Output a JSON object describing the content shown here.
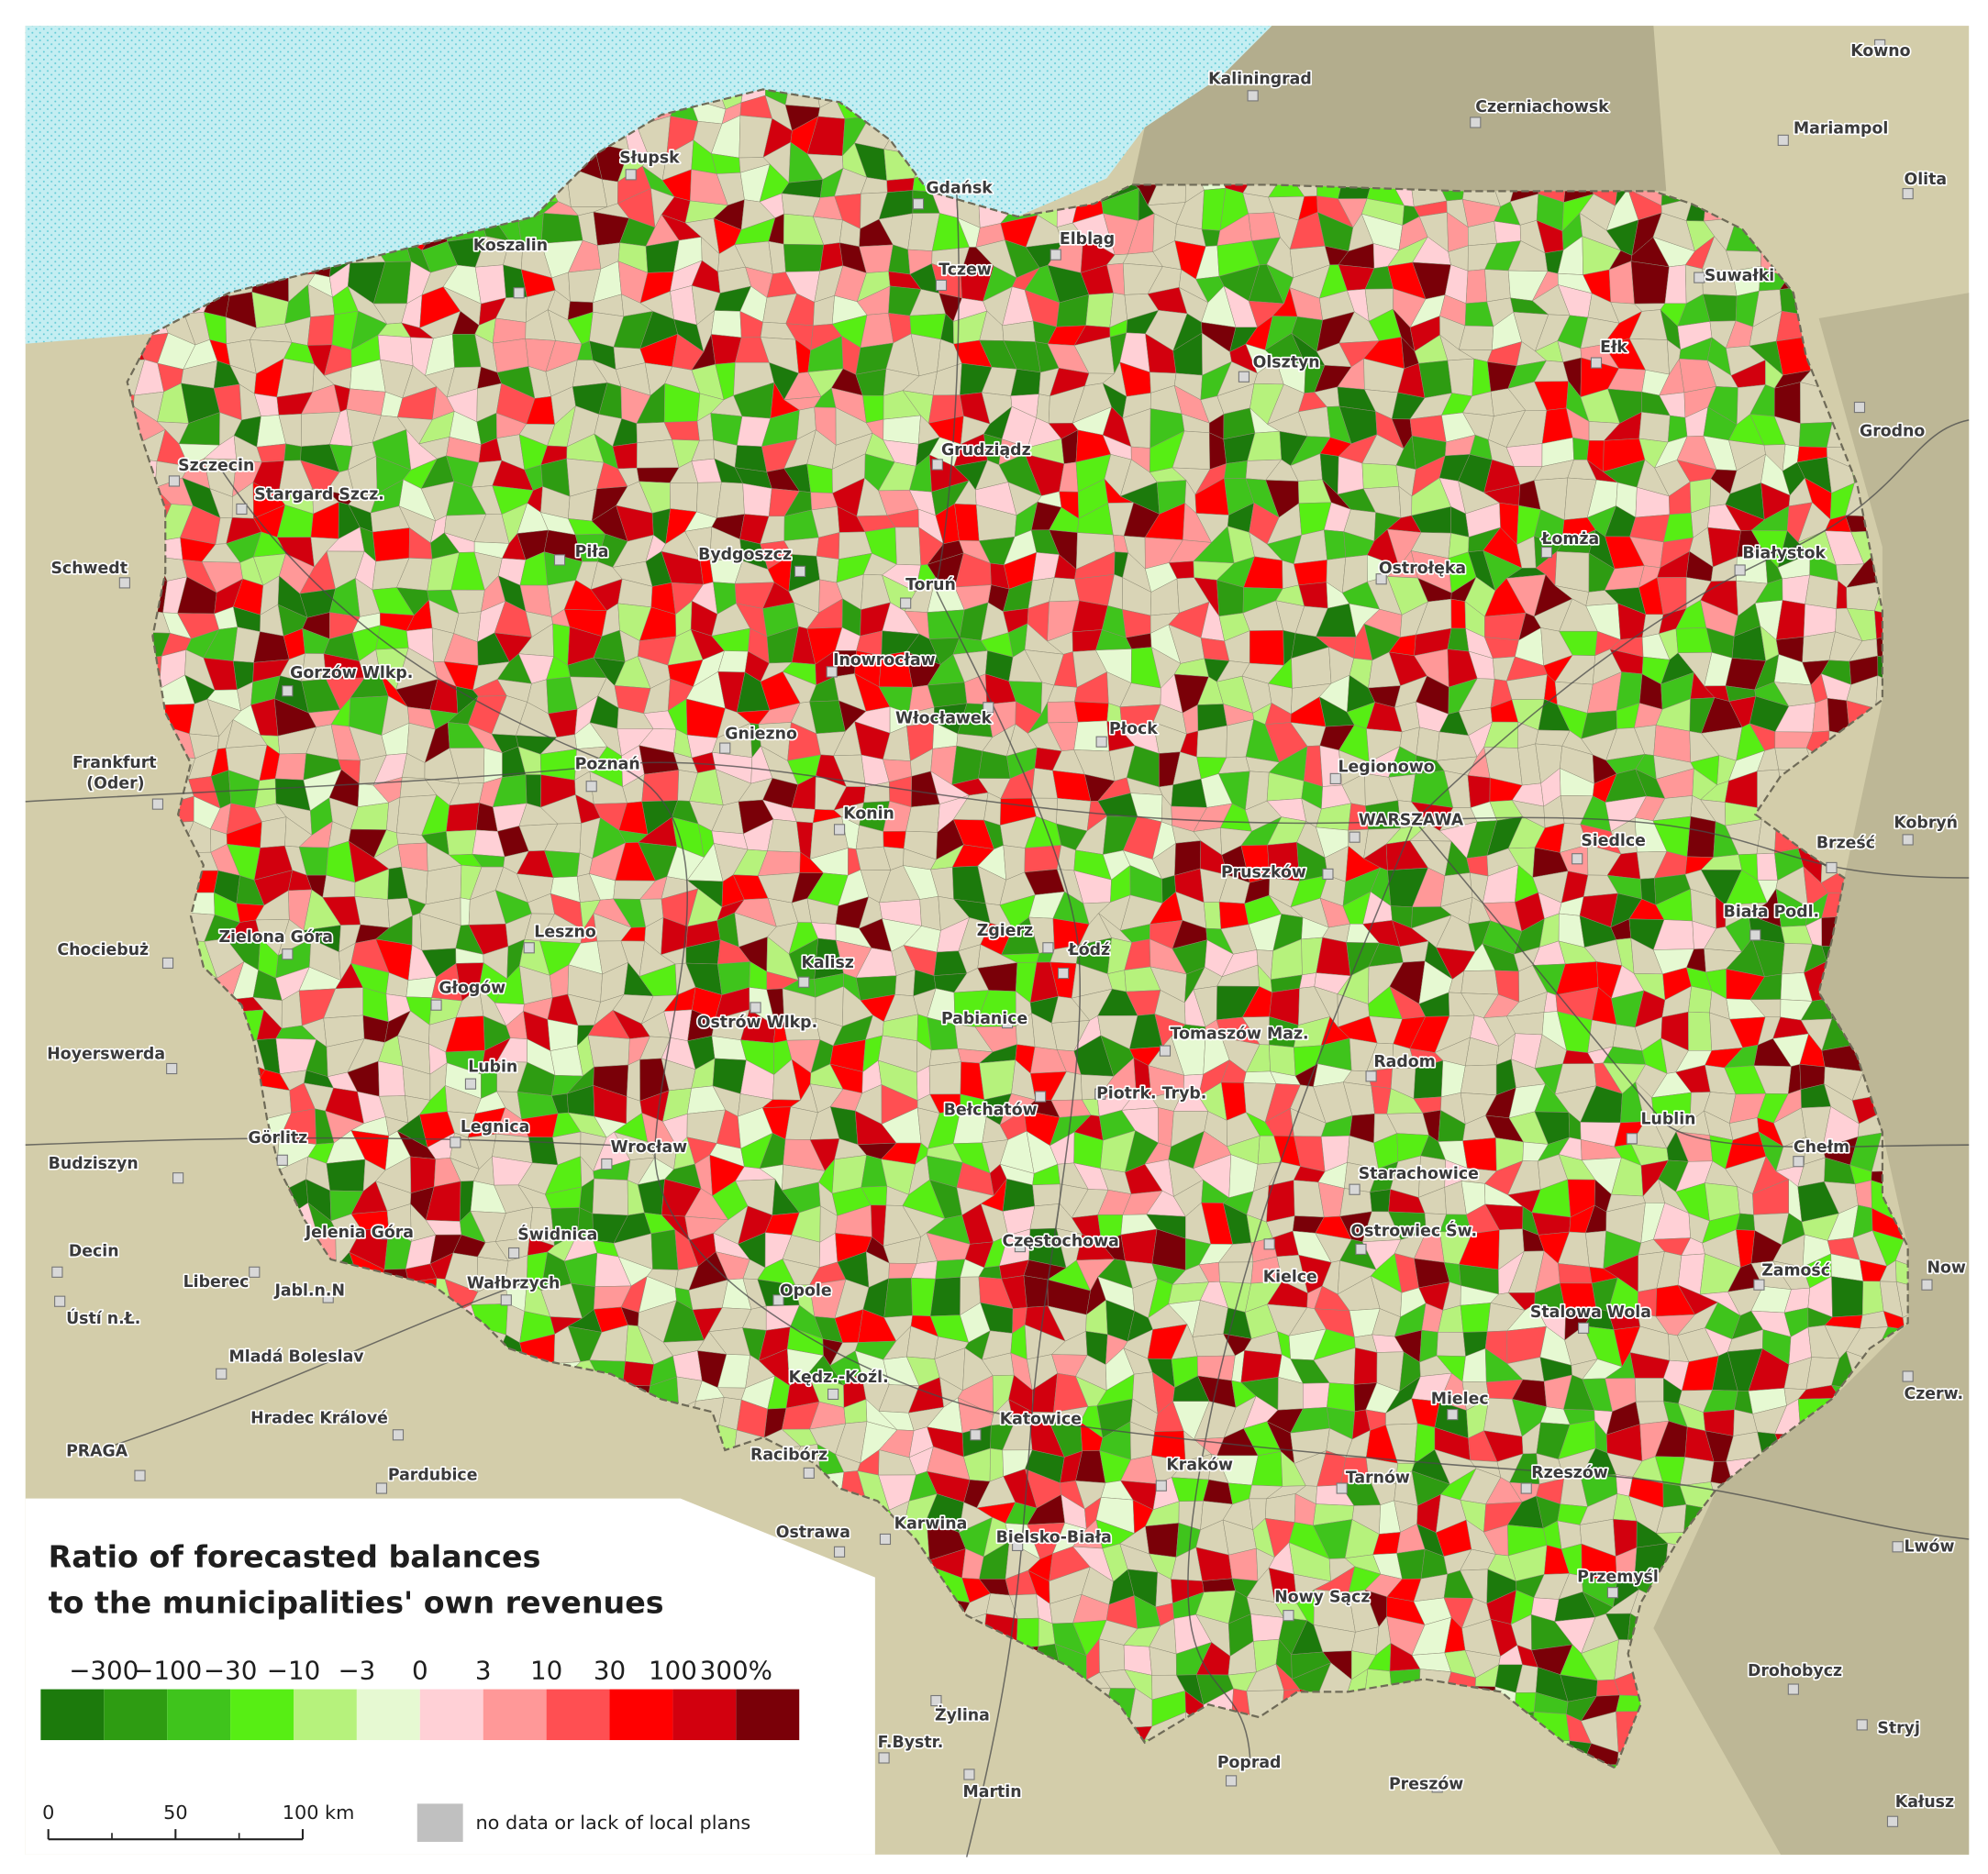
{
  "legend": {
    "title": [
      "Ratio of forecasted balances",
      "to the municipalities' own revenues"
    ],
    "class_breaks": [
      "−300",
      "−100",
      "−30",
      "−10",
      "−3",
      "0",
      "3",
      "10",
      "30",
      "100",
      "300%"
    ],
    "class_colors": [
      "#1c7a0c",
      "#2e9c12",
      "#3fc41c",
      "#57ee14",
      "#b6f27c",
      "#e6f9d2",
      "#ffd0d6",
      "#ff9898",
      "#ff4f52",
      "#ff0000",
      "#d2000e",
      "#7a0008"
    ],
    "no_data": "no data or lack of local plans",
    "no_data_color": "#c0c0c0"
  },
  "scale_bar": {
    "labels": [
      "0",
      "50",
      "100 km"
    ]
  },
  "places": [
    {
      "name": "Kaliningrad"
    },
    {
      "name": "Kowno"
    },
    {
      "name": "Czerniachowsk"
    },
    {
      "name": "Mariampol"
    },
    {
      "name": "Olita"
    },
    {
      "name": "Słupsk"
    },
    {
      "name": "Gdańsk"
    },
    {
      "name": "Elbląg"
    },
    {
      "name": "Tczew"
    },
    {
      "name": "Koszalin"
    },
    {
      "name": "Suwałki"
    },
    {
      "name": "Olsztyn"
    },
    {
      "name": "Ełk"
    },
    {
      "name": "Szczecin"
    },
    {
      "name": "Stargard Szcz."
    },
    {
      "name": "Grudziądz"
    },
    {
      "name": "Grodno"
    },
    {
      "name": "Schwedt"
    },
    {
      "name": "Piła"
    },
    {
      "name": "Bydgoszcz"
    },
    {
      "name": "Ostrołęka"
    },
    {
      "name": "Łomża"
    },
    {
      "name": "Białystok"
    },
    {
      "name": "Toruń"
    },
    {
      "name": "Gorzów Wlkp."
    },
    {
      "name": "Inowrocław"
    },
    {
      "name": "Płock"
    },
    {
      "name": "Włocławek"
    },
    {
      "name": "Gniezno"
    },
    {
      "name": [
        "Frankfurt",
        "(Oder)"
      ]
    },
    {
      "name": "Poznań"
    },
    {
      "name": "Legionowo"
    },
    {
      "name": "Konin"
    },
    {
      "name": "WARSZAWA"
    },
    {
      "name": "Siedlce"
    },
    {
      "name": "Brześć"
    },
    {
      "name": "Kobryń"
    },
    {
      "name": "Pruszków"
    },
    {
      "name": "Biała Podl."
    },
    {
      "name": "Chociebuż"
    },
    {
      "name": "Zielona Góra"
    },
    {
      "name": "Leszno"
    },
    {
      "name": "Zgierz"
    },
    {
      "name": "Łódź"
    },
    {
      "name": "Kalisz"
    },
    {
      "name": "Głogów"
    },
    {
      "name": "Ostrów Wlkp."
    },
    {
      "name": "Pabianice"
    },
    {
      "name": "Tomaszów Maz."
    },
    {
      "name": "Hoyerswerda"
    },
    {
      "name": "Lubin"
    },
    {
      "name": "Radom"
    },
    {
      "name": "Piotrk. Tryb."
    },
    {
      "name": "Bełchatów"
    },
    {
      "name": "Lublin"
    },
    {
      "name": "Chełm"
    },
    {
      "name": "Görlitz"
    },
    {
      "name": "Legnica"
    },
    {
      "name": "Wrocław"
    },
    {
      "name": "Budziszyn"
    },
    {
      "name": "Starachowice"
    },
    {
      "name": "Jelenia Góra"
    },
    {
      "name": "Świdnica"
    },
    {
      "name": "Ostrowiec Św."
    },
    {
      "name": "Częstochowa"
    },
    {
      "name": "Decin"
    },
    {
      "name": "Liberec"
    },
    {
      "name": "Jabl.n.N"
    },
    {
      "name": "Wałbrzych"
    },
    {
      "name": "Kielce"
    },
    {
      "name": "Zamość"
    },
    {
      "name": "Opole"
    },
    {
      "name": "Stalowa Wola"
    },
    {
      "name": "Ústí n.Ł."
    },
    {
      "name": "Mladá Boleslav"
    },
    {
      "name": "Kędz.-Koźl."
    },
    {
      "name": "Mielec"
    },
    {
      "name": "Hradec Králové"
    },
    {
      "name": "Katowice"
    },
    {
      "name": "Racibórz"
    },
    {
      "name": "PRAGA"
    },
    {
      "name": "Pardubice"
    },
    {
      "name": "Kraków"
    },
    {
      "name": "Tarnów"
    },
    {
      "name": "Rzeszów"
    },
    {
      "name": "Ostrawa"
    },
    {
      "name": "Karwina"
    },
    {
      "name": "Bielsko-Biała"
    },
    {
      "name": "Lwów"
    },
    {
      "name": "Przemyśl"
    },
    {
      "name": "Nowy Sącz"
    },
    {
      "name": "Drohobycz"
    },
    {
      "name": "Żylina"
    },
    {
      "name": "Stryj"
    },
    {
      "name": "F.Bystr."
    },
    {
      "name": "Poprad"
    },
    {
      "name": "Preszów"
    },
    {
      "name": "Martin"
    },
    {
      "name": "Kałusz"
    },
    {
      "name": "Now"
    },
    {
      "name": "Czerw."
    }
  ]
}
